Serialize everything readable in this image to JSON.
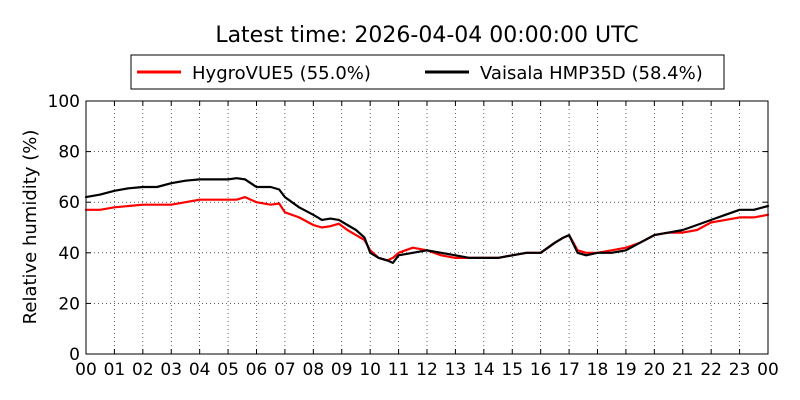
{
  "chart_data": {
    "type": "line",
    "title": "Latest time: 2026-04-04 00:00:00 UTC",
    "xlabel": "",
    "ylabel": "Relative humidity (%)",
    "ylim": [
      0,
      100
    ],
    "xlim": [
      0,
      24
    ],
    "xticks": [
      "00",
      "01",
      "02",
      "03",
      "04",
      "05",
      "06",
      "07",
      "08",
      "09",
      "10",
      "11",
      "12",
      "13",
      "14",
      "15",
      "16",
      "17",
      "18",
      "19",
      "20",
      "21",
      "22",
      "23",
      "00"
    ],
    "yticks": [
      "0",
      "20",
      "40",
      "60",
      "80",
      "100"
    ],
    "grid": true,
    "legend_position": "top",
    "series": [
      {
        "name": "HygroVUE5 (55.0%)",
        "color": "#ff0000",
        "x": [
          0,
          0.5,
          1,
          1.5,
          2,
          2.5,
          3,
          3.5,
          4,
          4.5,
          5,
          5.3,
          5.6,
          6,
          6.5,
          6.8,
          7,
          7.5,
          8,
          8.3,
          8.6,
          8.9,
          9.2,
          9.5,
          9.8,
          10,
          10.3,
          10.6,
          10.8,
          11,
          11.5,
          12,
          12.5,
          13,
          13.5,
          14,
          14.5,
          15,
          15.5,
          16,
          16.5,
          16.8,
          17,
          17.3,
          17.6,
          18,
          18.5,
          19,
          19.5,
          20,
          20.5,
          21,
          21.5,
          22,
          22.5,
          23,
          23.5,
          24
        ],
        "y": [
          57,
          57,
          58,
          58.5,
          59,
          59,
          59,
          60,
          61,
          61,
          61,
          61,
          62,
          60,
          59,
          59.5,
          56,
          54,
          51,
          50,
          50.5,
          51.5,
          49,
          47,
          45,
          41,
          38,
          37,
          38,
          40,
          42,
          41,
          39,
          38,
          38,
          38,
          38,
          39,
          40,
          40,
          44,
          46,
          47,
          41,
          40,
          40,
          41,
          42,
          44,
          47,
          48,
          48,
          49,
          52,
          53,
          54,
          54,
          55
        ]
      },
      {
        "name": "Vaisala HMP35D (58.4%)",
        "color": "#000000",
        "x": [
          0,
          0.5,
          1,
          1.5,
          2,
          2.5,
          3,
          3.5,
          4,
          4.5,
          5,
          5.3,
          5.6,
          6,
          6.5,
          6.8,
          7,
          7.5,
          8,
          8.3,
          8.6,
          8.9,
          9.2,
          9.5,
          9.8,
          10,
          10.3,
          10.6,
          10.8,
          11,
          11.5,
          12,
          12.5,
          13,
          13.5,
          14,
          14.5,
          15,
          15.5,
          16,
          16.5,
          16.8,
          17,
          17.3,
          17.6,
          18,
          18.5,
          19,
          19.5,
          20,
          20.5,
          21,
          21.5,
          22,
          22.5,
          23,
          23.5,
          24
        ],
        "y": [
          62,
          63,
          64.5,
          65.5,
          66,
          66,
          67.5,
          68.5,
          69,
          69,
          69,
          69.5,
          69,
          66,
          66,
          65,
          62,
          58,
          55,
          53,
          53.5,
          53,
          51,
          49,
          46,
          40,
          38,
          37,
          36,
          39,
          40,
          41,
          40,
          39,
          38,
          38,
          38,
          39,
          40,
          40,
          44,
          46,
          47,
          40,
          39,
          40,
          40,
          41,
          44,
          47,
          48,
          49,
          51,
          53,
          55,
          57,
          57,
          58.5
        ]
      }
    ]
  }
}
